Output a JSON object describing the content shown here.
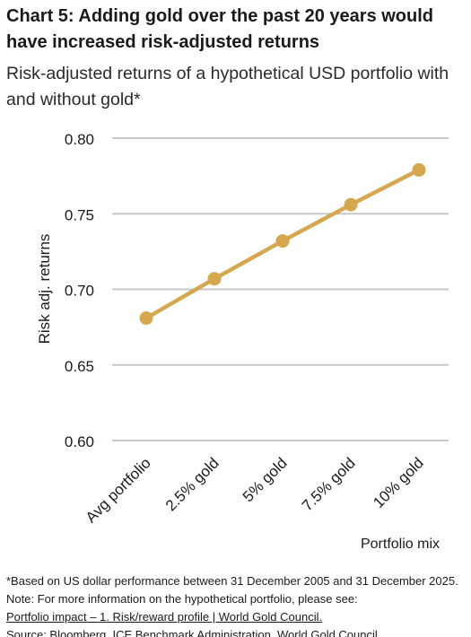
{
  "header": {
    "title": "Chart 5: Adding gold over the past 20 years would have increased risk-adjusted returns",
    "subtitle": "Risk-adjusted returns of a hypothetical USD portfolio with and without gold*"
  },
  "footer": {
    "note": "*Based on US dollar performance between 31 December 2005 and 31 December 2025. Note: For more information on the hypothetical portfolio, please see:",
    "link_text": "Portfolio impact – 1. Risk/reward profile | World Gold Council.",
    "source": "Source: Bloomberg, ICE Benchmark Administration, World Gold Council"
  },
  "colors": {
    "line": "#D5A84F",
    "gridline": "#c8c8c8",
    "text": "#1a1a1a"
  },
  "chart_data": {
    "type": "line",
    "categories": [
      "Avg portfolio",
      "2.5% gold",
      "5% gold",
      "7.5% gold",
      "10% gold"
    ],
    "values": [
      0.681,
      0.707,
      0.732,
      0.756,
      0.779
    ],
    "xlabel": "Portfolio mix",
    "ylabel": "Risk adj. returns",
    "ylim": [
      0.6,
      0.8
    ],
    "yticks": [
      "0.80",
      "0.75",
      "0.70",
      "0.65",
      "0.60"
    ],
    "grid": true,
    "legend": "none"
  }
}
